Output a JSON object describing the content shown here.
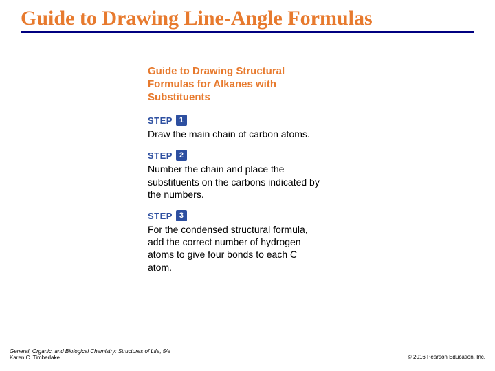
{
  "title": "Guide to Drawing Line-Angle Formulas",
  "subtitle": "Guide to Drawing Structural Formulas for Alkanes with Substituents",
  "steps": [
    {
      "label": "STEP",
      "num": "1",
      "text": "Draw the main chain of carbon atoms."
    },
    {
      "label": "STEP",
      "num": "2",
      "text": "Number the chain and place the substituents on the carbons indicated by the numbers."
    },
    {
      "label": "STEP",
      "num": "3",
      "text": "For the condensed structural formula, add the correct number of hydrogen atoms to give four bonds to each C atom."
    }
  ],
  "footer": {
    "book": "General, Organic, and Biological Chemistry: Structures of Life, 5/e",
    "author": "Karen C. Timberlake",
    "copyright": "© 2016 Pearson Education, Inc."
  },
  "colors": {
    "accent": "#e77a2e",
    "step_blue": "#2d4fa0",
    "underline": "#000080"
  }
}
